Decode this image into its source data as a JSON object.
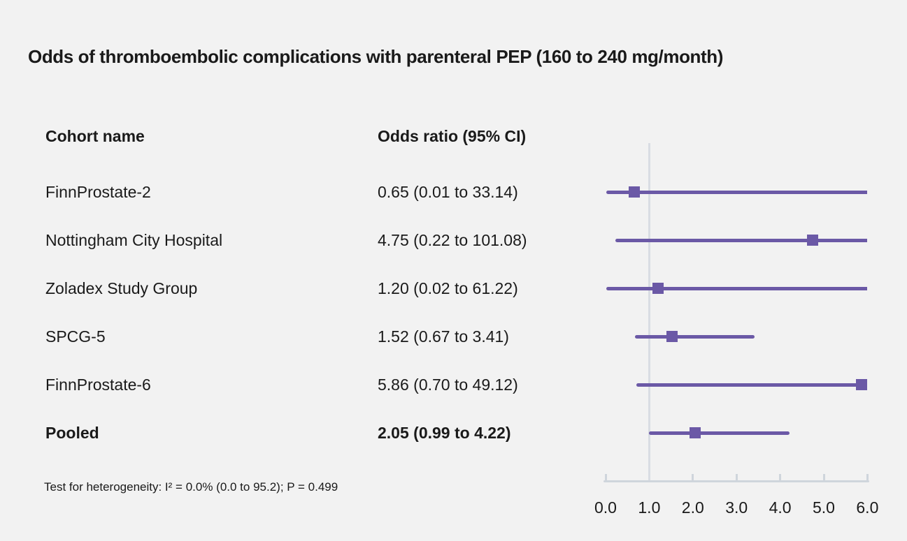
{
  "chart_data": {
    "type": "scatter",
    "variant": "forest-plot",
    "title": "Odds of thromboembolic complications with parenteral PEP (160 to 240 mg/month)",
    "columns": {
      "cohort": "Cohort name",
      "odds_ratio": "Odds ratio (95% CI)"
    },
    "rows": [
      {
        "name": "FinnProstate-2",
        "or": 0.65,
        "lo": 0.01,
        "hi": 33.14,
        "label": "0.65 (0.01 to 33.14)",
        "bold": false
      },
      {
        "name": "Nottingham City Hospital",
        "or": 4.75,
        "lo": 0.22,
        "hi": 101.08,
        "label": "4.75 (0.22 to 101.08)",
        "bold": false
      },
      {
        "name": "Zoladex Study Group",
        "or": 1.2,
        "lo": 0.02,
        "hi": 61.22,
        "label": "1.20 (0.02 to 61.22)",
        "bold": false
      },
      {
        "name": "SPCG-5",
        "or": 1.52,
        "lo": 0.67,
        "hi": 3.41,
        "label": "1.52 (0.67 to 3.41)",
        "bold": false
      },
      {
        "name": "FinnProstate-6",
        "or": 5.86,
        "lo": 0.7,
        "hi": 49.12,
        "label": "5.86 (0.70 to 49.12)",
        "bold": false
      },
      {
        "name": "Pooled",
        "or": 2.05,
        "lo": 0.99,
        "hi": 4.22,
        "label": "2.05 (0.99 to 4.22)",
        "bold": true
      }
    ],
    "xlim": [
      0,
      6
    ],
    "ticks": [
      0,
      1,
      2,
      3,
      4,
      5,
      6
    ],
    "tick_labels": [
      "0.0",
      "1.0",
      "2.0",
      "3.0",
      "4.0",
      "5.0",
      "6.0"
    ],
    "ref_value": 1,
    "grid": false,
    "legend": "none",
    "footnote": "Test for heterogeneity: I² = 0.0% (0.0 to 95.2); P = 0.499",
    "colors": {
      "estimate": "#6b59a6",
      "ci_line": "#6b59a6",
      "ref_line": "#d9dde3",
      "axis": "#cfd5dc",
      "text": "#1a1a1a",
      "background": "#f2f2f2"
    }
  }
}
